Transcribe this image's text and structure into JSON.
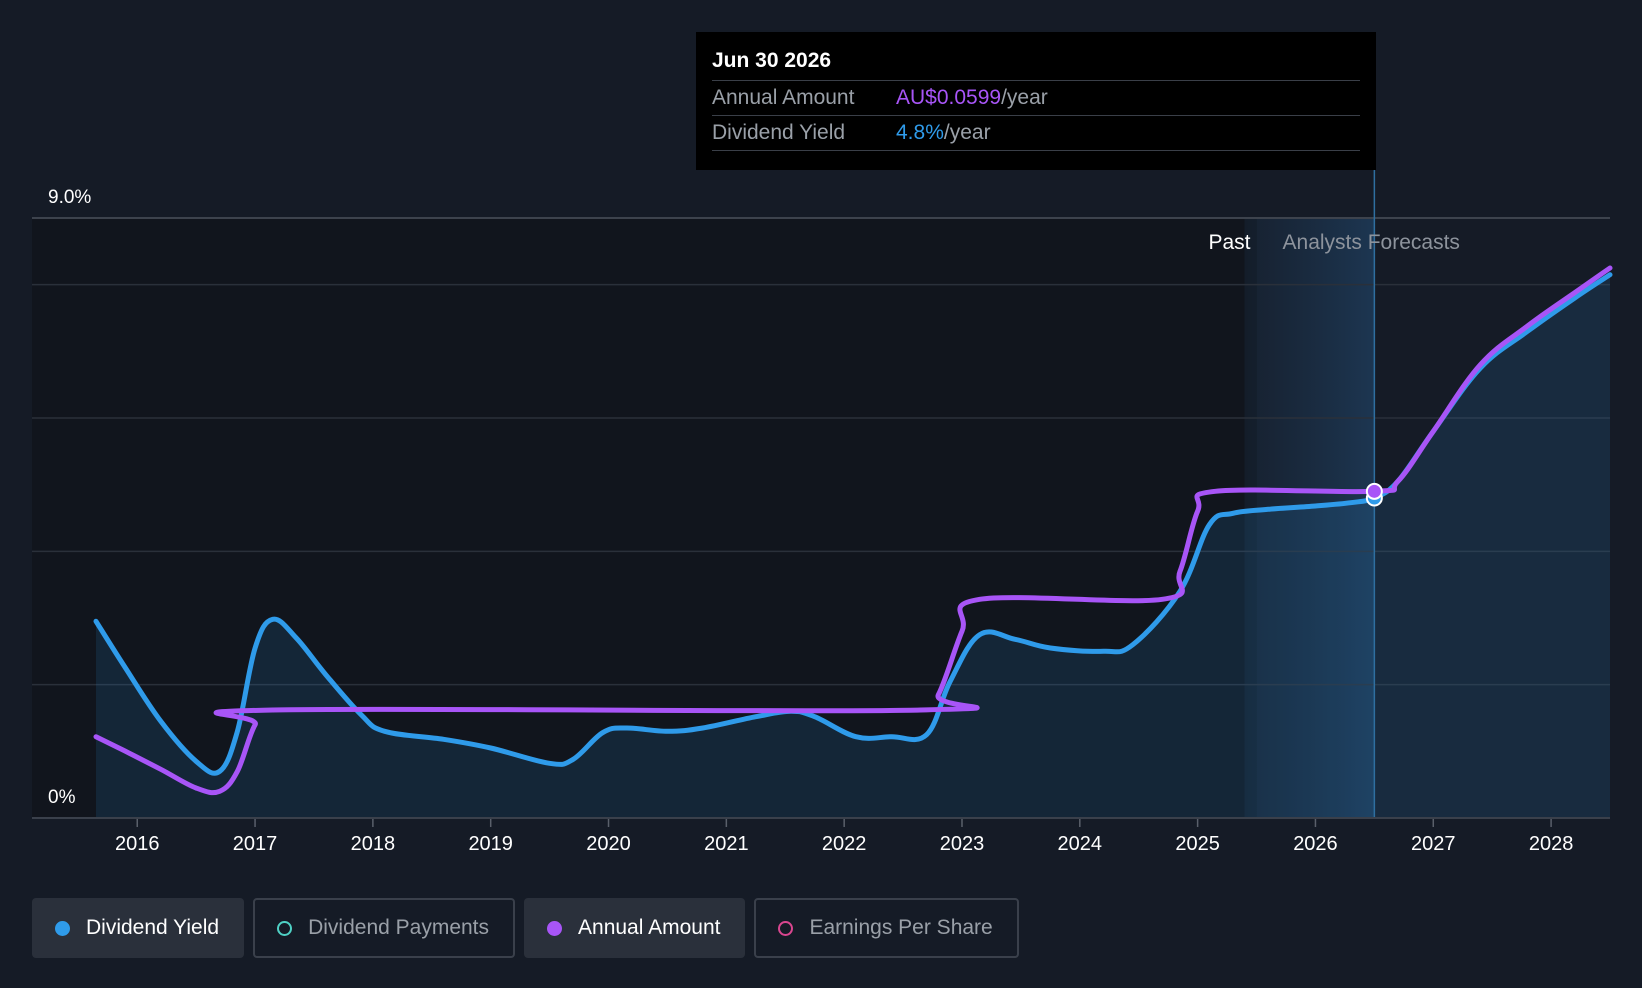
{
  "chart_data": {
    "type": "line",
    "x_range": [
      2015.65,
      2028.5
    ],
    "y_range": [
      0,
      9.0
    ],
    "y_tick_labels": [
      {
        "value": 9.0,
        "label": "9.0%"
      },
      {
        "value": 0,
        "label": "0%"
      }
    ],
    "gridlines": [
      0,
      2.0,
      4.0,
      6.0,
      8.0,
      9.0
    ],
    "x_ticks": [
      {
        "value": 2016,
        "label": "2016"
      },
      {
        "value": 2017,
        "label": "2017"
      },
      {
        "value": 2018,
        "label": "2018"
      },
      {
        "value": 2019,
        "label": "2019"
      },
      {
        "value": 2020,
        "label": "2020"
      },
      {
        "value": 2021,
        "label": "2021"
      },
      {
        "value": 2022,
        "label": "2022"
      },
      {
        "value": 2023,
        "label": "2023"
      },
      {
        "value": 2024,
        "label": "2024"
      },
      {
        "value": 2025,
        "label": "2025"
      },
      {
        "value": 2026,
        "label": "2026"
      },
      {
        "value": 2027,
        "label": "2027"
      },
      {
        "value": 2028,
        "label": "2028"
      }
    ],
    "past_label": "Past",
    "forecast_label": "Analysts Forecasts",
    "forecast_start": 2025.5,
    "highlight_x": 2026.5,
    "series": [
      {
        "name": "Dividend Yield",
        "color": "#2f9bea",
        "points": [
          [
            2015.65,
            2.95
          ],
          [
            2015.9,
            2.25
          ],
          [
            2016.2,
            1.45
          ],
          [
            2016.5,
            0.85
          ],
          [
            2016.7,
            0.7
          ],
          [
            2016.85,
            1.3
          ],
          [
            2017.0,
            2.55
          ],
          [
            2017.15,
            2.98
          ],
          [
            2017.35,
            2.7
          ],
          [
            2017.6,
            2.15
          ],
          [
            2017.9,
            1.55
          ],
          [
            2018.1,
            1.3
          ],
          [
            2018.6,
            1.18
          ],
          [
            2019.0,
            1.05
          ],
          [
            2019.5,
            0.82
          ],
          [
            2019.7,
            0.88
          ],
          [
            2019.95,
            1.28
          ],
          [
            2020.15,
            1.35
          ],
          [
            2020.5,
            1.3
          ],
          [
            2020.8,
            1.35
          ],
          [
            2021.25,
            1.52
          ],
          [
            2021.55,
            1.6
          ],
          [
            2021.75,
            1.52
          ],
          [
            2022.1,
            1.22
          ],
          [
            2022.4,
            1.22
          ],
          [
            2022.7,
            1.25
          ],
          [
            2022.9,
            2.05
          ],
          [
            2023.15,
            2.75
          ],
          [
            2023.45,
            2.68
          ],
          [
            2023.75,
            2.55
          ],
          [
            2024.2,
            2.5
          ],
          [
            2024.45,
            2.6
          ],
          [
            2024.85,
            3.4
          ],
          [
            2025.1,
            4.4
          ],
          [
            2025.3,
            4.57
          ],
          [
            2025.6,
            4.63
          ],
          [
            2026.0,
            4.68
          ],
          [
            2026.3,
            4.73
          ],
          [
            2026.5,
            4.8
          ],
          [
            2026.7,
            5.05
          ],
          [
            2027.0,
            5.8
          ],
          [
            2027.4,
            6.75
          ],
          [
            2027.8,
            7.3
          ],
          [
            2028.2,
            7.8
          ],
          [
            2028.5,
            8.15
          ]
        ]
      },
      {
        "name": "Annual Amount",
        "color": "#a855f7",
        "points": [
          [
            2015.65,
            1.22
          ],
          [
            2015.9,
            1.0
          ],
          [
            2016.2,
            0.73
          ],
          [
            2016.5,
            0.45
          ],
          [
            2016.7,
            0.4
          ],
          [
            2016.85,
            0.7
          ],
          [
            2017.0,
            1.4
          ],
          [
            2017.15,
            1.62
          ],
          [
            2022.65,
            1.62
          ],
          [
            2022.8,
            1.85
          ],
          [
            2023.0,
            2.8
          ],
          [
            2023.15,
            3.28
          ],
          [
            2024.7,
            3.28
          ],
          [
            2024.85,
            3.7
          ],
          [
            2025.0,
            4.6
          ],
          [
            2025.15,
            4.9
          ],
          [
            2026.5,
            4.9
          ],
          [
            2026.7,
            5.05
          ],
          [
            2027.0,
            5.8
          ],
          [
            2027.4,
            6.8
          ],
          [
            2027.8,
            7.38
          ],
          [
            2028.2,
            7.88
          ],
          [
            2028.5,
            8.25
          ]
        ]
      }
    ],
    "highlight_points": [
      {
        "series": "Annual Amount",
        "x": 2026.5,
        "y": 4.9
      },
      {
        "series": "Dividend Yield",
        "x": 2026.5,
        "y": 4.8
      }
    ]
  },
  "tooltip": {
    "date": "Jun 30 2026",
    "rows": [
      {
        "label": "Annual Amount",
        "value": "AU$0.0599",
        "unit": "/year"
      },
      {
        "label": "Dividend Yield",
        "value": "4.8%",
        "unit": "/year"
      }
    ]
  },
  "legend": [
    {
      "label": "Dividend Yield",
      "color": "#2f9bea",
      "active": true
    },
    {
      "label": "Dividend Payments",
      "color": "#4fd1c5",
      "active": false
    },
    {
      "label": "Annual Amount",
      "color": "#a855f7",
      "active": true
    },
    {
      "label": "Earnings Per Share",
      "color": "#d9468f",
      "active": false
    }
  ]
}
